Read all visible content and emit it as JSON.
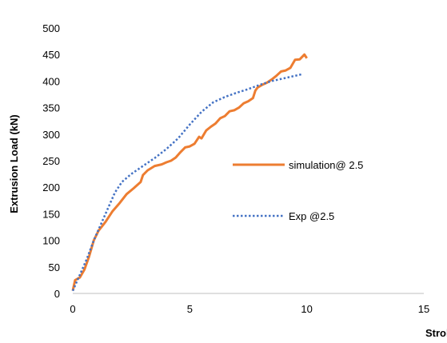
{
  "chart_data": {
    "type": "line",
    "title": "",
    "xlabel": "Stroke",
    "ylabel": "Extrusion Load (kN)",
    "xlim": [
      0,
      15
    ],
    "ylim": [
      0,
      500
    ],
    "xticks": [
      0,
      5,
      10,
      15
    ],
    "yticks": [
      0,
      50,
      100,
      150,
      200,
      250,
      300,
      350,
      400,
      450,
      500
    ],
    "grid": false,
    "legend_position": "right",
    "series": [
      {
        "name": "simulation@ 2.5",
        "color": "#ED7D31",
        "style": "solid",
        "x": [
          0,
          0.1,
          0.3,
          0.5,
          0.7,
          0.9,
          1.1,
          1.4,
          1.7,
          2.0,
          2.3,
          2.6,
          2.9,
          3.0,
          3.2,
          3.5,
          3.8,
          4.0,
          4.2,
          4.4,
          4.6,
          4.8,
          5.0,
          5.2,
          5.4,
          5.5,
          5.7,
          5.9,
          6.1,
          6.3,
          6.5,
          6.7,
          6.9,
          7.1,
          7.3,
          7.5,
          7.7,
          7.8,
          7.9,
          8.1,
          8.3,
          8.5,
          8.7,
          8.9,
          9.1,
          9.3,
          9.5,
          9.7,
          9.9,
          10.0
        ],
        "values": [
          5,
          25,
          30,
          45,
          70,
          100,
          118,
          135,
          155,
          170,
          187,
          198,
          210,
          223,
          232,
          240,
          243,
          247,
          250,
          256,
          266,
          275,
          277,
          282,
          295,
          292,
          307,
          314,
          320,
          330,
          334,
          343,
          345,
          350,
          358,
          362,
          368,
          382,
          388,
          393,
          397,
          403,
          410,
          418,
          420,
          425,
          440,
          441,
          450,
          443
        ]
      },
      {
        "name": "Exp @2.5",
        "color": "#4472C4",
        "style": "dotted",
        "x": [
          0,
          0.3,
          0.6,
          0.9,
          1.2,
          1.5,
          1.8,
          2.1,
          2.5,
          3.0,
          3.5,
          4.0,
          4.5,
          5.0,
          5.5,
          6.0,
          6.5,
          7.0,
          7.5,
          8.0,
          8.5,
          9.0,
          9.5,
          9.8
        ],
        "values": [
          5,
          35,
          65,
          100,
          130,
          160,
          190,
          210,
          225,
          240,
          255,
          272,
          292,
          318,
          342,
          360,
          370,
          378,
          385,
          393,
          400,
          405,
          410,
          413
        ]
      }
    ]
  }
}
